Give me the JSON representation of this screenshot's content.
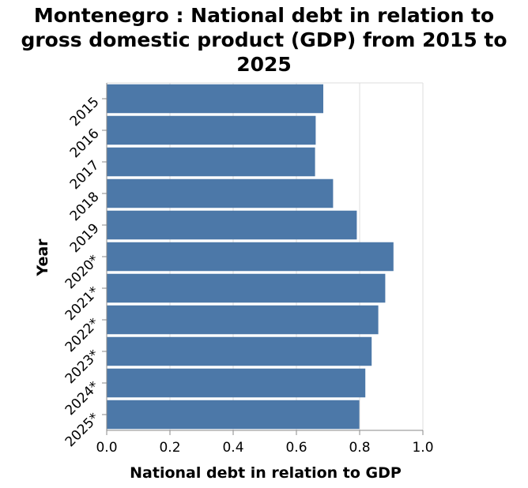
{
  "chart_data": {
    "type": "bar",
    "orientation": "horizontal",
    "title_lines": [
      "Montenegro : National debt in relation to",
      "gross domestic product (GDP) from 2015 to",
      "2025"
    ],
    "title": "Montenegro : National debt in relation to gross domestic product (GDP) from 2015 to 2025",
    "categories": [
      "2015",
      "2016",
      "2017",
      "2018",
      "2019",
      "2020*",
      "2021*",
      "2022*",
      "2023*",
      "2024*",
      "2025*"
    ],
    "values": [
      0.685,
      0.661,
      0.659,
      0.716,
      0.791,
      0.907,
      0.881,
      0.859,
      0.838,
      0.818,
      0.799
    ],
    "xlabel": "National debt in relation to GDP",
    "ylabel": "Year",
    "xlim": [
      0,
      1.0
    ],
    "xticks": [
      "0.0",
      "0.2",
      "0.4",
      "0.6",
      "0.8",
      "1.0"
    ],
    "grid": true,
    "bar_color": "#4c78a8"
  }
}
